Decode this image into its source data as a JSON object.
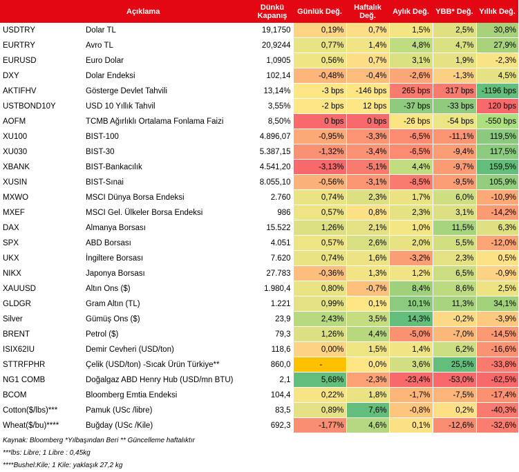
{
  "headers": [
    "",
    "Açıklama",
    "Dünkü Kapanış",
    "Günlük Değ.",
    "Haftalık Değ.",
    "Aylık Değ.",
    "YBB* Değ.",
    "Yıllık Değ."
  ],
  "rows": [
    {
      "code": "USDTRY",
      "desc": "Dolar TL",
      "close": "19,1750",
      "vals": [
        "0,19%",
        "0,7%",
        "1,5%",
        "2,5%",
        "30,8%"
      ],
      "colors": [
        "#fcd484",
        "#fdde86",
        "#f3e584",
        "#e0e082",
        "#a7d17a"
      ]
    },
    {
      "code": "EURTRY",
      "desc": "Avro TL",
      "close": "20,9244",
      "vals": [
        "0,77%",
        "1,4%",
        "4,8%",
        "4,7%",
        "27,9%"
      ],
      "colors": [
        "#e8e383",
        "#f1e485",
        "#bedc80",
        "#d9e182",
        "#a9d27c"
      ]
    },
    {
      "code": "EURUSD",
      "desc": "Euro Dolar",
      "close": "1,0905",
      "vals": [
        "0,56%",
        "0,7%",
        "3,1%",
        "1,9%",
        "-2,3%"
      ],
      "colors": [
        "#f0e584",
        "#fdde86",
        "#dae181",
        "#e6e283",
        "#f8e386"
      ]
    },
    {
      "code": "DXY",
      "desc": "Dolar Endeksi",
      "close": "102,14",
      "vals": [
        "-0,48%",
        "-0,4%",
        "-2,6%",
        "-1,3%",
        "4,5%"
      ],
      "colors": [
        "#fcb57a",
        "#fcbd7c",
        "#fba676",
        "#fcd083",
        "#e5e283"
      ]
    },
    {
      "code": "AKTIFHV",
      "desc": "Gösterge Devlet Tahvili",
      "close": "13,14%",
      "vals": [
        "-3 bps",
        "-146 bps",
        "265 bps",
        "317 bps",
        "-1196 bps"
      ],
      "colors": [
        "#fee684",
        "#fee684",
        "#f97a6e",
        "#f97a6e",
        "#63be7b"
      ]
    },
    {
      "code": "USTBOND10Y",
      "desc": "USD 10 Yıllık Tahvil",
      "close": "3,55%",
      "vals": [
        "-2 bps",
        "12 bps",
        "-37 bps",
        "-33 bps",
        "120 bps"
      ],
      "colors": [
        "#fee684",
        "#fee684",
        "#8fca7e",
        "#8fca7e",
        "#f8696b"
      ]
    },
    {
      "code": "AOFM",
      "desc": "TCMB Ağırlıklı Ortalama Fonlama Faizi",
      "close": "8,50%",
      "vals": [
        "0 bps",
        "0 bps",
        "-26 bps",
        "-54 bps",
        "-550 bps"
      ],
      "colors": [
        "#f8696b",
        "#f8696b",
        "#f9e584",
        "#ece584",
        "#ace07e"
      ]
    },
    {
      "code": "XU100",
      "desc": "BIST-100",
      "close": "4.896,07",
      "vals": [
        "-0,95%",
        "-3,3%",
        "-6,5%",
        "-11,1%",
        "119,5%"
      ],
      "colors": [
        "#fba977",
        "#fb9473",
        "#fb8c71",
        "#fa9473",
        "#8bca7e"
      ]
    },
    {
      "code": "XU030",
      "desc": "BIST-30",
      "close": "5.387,15",
      "vals": [
        "-1,32%",
        "-3,4%",
        "-6,5%",
        "-9,4%",
        "117,5%"
      ],
      "colors": [
        "#fa9172",
        "#fb9273",
        "#fb8c71",
        "#fa9c74",
        "#8cca7e"
      ]
    },
    {
      "code": "XBANK",
      "desc": "BIST-Bankacılık",
      "close": "4.541,20",
      "vals": [
        "-3,13%",
        "-5,1%",
        "4,4%",
        "-9,7%",
        "159,5%"
      ],
      "colors": [
        "#f8696b",
        "#f97b6e",
        "#c2dd80",
        "#fa9b74",
        "#63be7b"
      ]
    },
    {
      "code": "XUSIN",
      "desc": "BIST-Sınai",
      "close": "8.055,10",
      "vals": [
        "-0,56%",
        "-3,1%",
        "-8,5%",
        "-9,5%",
        "105,9%"
      ],
      "colors": [
        "#fbb27a",
        "#fb9773",
        "#f97a6e",
        "#fa9c74",
        "#95cd7e"
      ]
    },
    {
      "code": "MXWO",
      "desc": "MSCI Dünya Borsa Endeksi",
      "close": "2.760",
      "vals": [
        "0,74%",
        "2,3%",
        "1,7%",
        "6,0%",
        "-10,9%"
      ],
      "colors": [
        "#eae384",
        "#dde082",
        "#ebe383",
        "#cedf81",
        "#fba976"
      ]
    },
    {
      "code": "MXEF",
      "desc": "MSCI Gel. Ülkeler Borsa Endeksi",
      "close": "986",
      "vals": [
        "0,57%",
        "0,8%",
        "2,3%",
        "3,1%",
        "-14,2%"
      ],
      "colors": [
        "#efe484",
        "#fbe086",
        "#e4e283",
        "#dde082",
        "#fa9b74"
      ]
    },
    {
      "code": "DAX",
      "desc": "Almanya Borsası",
      "close": "15.522",
      "vals": [
        "1,26%",
        "2,1%",
        "1,0%",
        "11,5%",
        "6,3%"
      ],
      "colors": [
        "#dde082",
        "#e3e183",
        "#f4e585",
        "#a7d47f",
        "#dee082"
      ]
    },
    {
      "code": "SPX",
      "desc": "ABD Borsası",
      "close": "4.051",
      "vals": [
        "0,57%",
        "2,6%",
        "2,0%",
        "5,5%",
        "-12,0%"
      ],
      "colors": [
        "#efe484",
        "#d7df82",
        "#e8e283",
        "#d1df81",
        "#fba475"
      ]
    },
    {
      "code": "UKX",
      "desc": "İngiltere Borsası",
      "close": "7.620",
      "vals": [
        "0,74%",
        "1,6%",
        "-3,2%",
        "2,3%",
        "0,5%"
      ],
      "colors": [
        "#eae384",
        "#ede384",
        "#fa9e75",
        "#e4e183",
        "#fce285"
      ]
    },
    {
      "code": "NIKX",
      "desc": "Japonya Borsası",
      "close": "27.783",
      "vals": [
        "-0,36%",
        "1,3%",
        "1,2%",
        "6,5%",
        "-0,9%"
      ],
      "colors": [
        "#fcbd7d",
        "#f2e485",
        "#f1e484",
        "#cadd81",
        "#fcd384"
      ]
    },
    {
      "code": "XAUUSD",
      "desc": "Altın Ons ($)",
      "close": "1.980,4",
      "vals": [
        "0,80%",
        "-0,7%",
        "8,4%",
        "8,6%",
        "2,5%"
      ],
      "colors": [
        "#e9e383",
        "#fdc17d",
        "#9fd17d",
        "#bcda80",
        "#eee383"
      ]
    },
    {
      "code": "GLDGR",
      "desc": "Gram Altın (TL)",
      "close": "1.221",
      "vals": [
        "0,99%",
        "0,1%",
        "10,1%",
        "11,3%",
        "34,1%"
      ],
      "colors": [
        "#e4e283",
        "#fee684",
        "#8ccb7e",
        "#a9d47f",
        "#a2d17c"
      ]
    },
    {
      "code": "Silver",
      "desc": "Gümüş Ons ($)",
      "close": "23,9",
      "vals": [
        "2,43%",
        "3,5%",
        "14,3%",
        "-0,2%",
        "-3,9%"
      ],
      "colors": [
        "#b9d980",
        "#c6dc80",
        "#63be7b",
        "#fcda85",
        "#fcc97f"
      ]
    },
    {
      "code": "BRENT",
      "desc": "Petrol ($)",
      "close": "79,3",
      "vals": [
        "1,26%",
        "4,4%",
        "-5,0%",
        "-7,0%",
        "-14,5%"
      ],
      "colors": [
        "#dde082",
        "#b8d880",
        "#fa9272",
        "#fbb87b",
        "#fa9a74"
      ]
    },
    {
      "code": "ISIX62IU",
      "desc": "Demir Cevheri (USD/ton)",
      "close": "118,6",
      "vals": [
        "0,00%",
        "1,5%",
        "1,4%",
        "6,2%",
        "-16,6%"
      ],
      "colors": [
        "#fcd384",
        "#efe484",
        "#f0e484",
        "#cbde81",
        "#fa9373"
      ]
    },
    {
      "code": "STTRFPHR",
      "desc": "Çelik (USD/ton) -Sıcak Ürün Türkiye**",
      "close": "860,0",
      "vals": [
        "-",
        "0,0%",
        "3,6%",
        "25,5%",
        "-33,8%"
      ],
      "colors": [
        "#ffc000",
        "#fee684",
        "#d1df82",
        "#63be7b",
        "#f97b6f"
      ]
    },
    {
      "code": "NG1 COMB",
      "desc": "Doğalgaz ABD Henry Hub (USD/mn BTU)",
      "close": "2,1",
      "vals": [
        "5,68%",
        "-2,3%",
        "-23,4%",
        "-53,0%",
        "-62,5%"
      ],
      "colors": [
        "#63be7b",
        "#fca274",
        "#f8696b",
        "#f8696b",
        "#f8696b"
      ]
    },
    {
      "code": "BCOM",
      "desc": "Bloomberg Emtia Endeksi",
      "close": "104,4",
      "vals": [
        "0,22%",
        "1,8%",
        "-1,7%",
        "-7,5%",
        "-17,4%"
      ],
      "colors": [
        "#f7e585",
        "#ebe383",
        "#fcb67a",
        "#fbb47a",
        "#fa9172"
      ]
    },
    {
      "code": "Cotton($/lbs)***",
      "desc": "Pamuk (USc /libre)",
      "close": "83,5",
      "vals": [
        "0,89%",
        "7,6%",
        "-0,8%",
        "0,2%",
        "-40,3%"
      ],
      "colors": [
        "#e6e283",
        "#63be7b",
        "#fcc57e",
        "#fde085",
        "#f97a6e"
      ]
    },
    {
      "code": "Wheat($/bu)****",
      "desc": "Buğday (USc /Kile)",
      "close": "692,3",
      "vals": [
        "-1,77%",
        "4,6%",
        "0,1%",
        "-12,6%",
        "-32,6%"
      ],
      "colors": [
        "#fa8e72",
        "#b4d780",
        "#fbe086",
        "#fa8c71",
        "#f97e6f"
      ]
    }
  ],
  "footnotes": [
    "Kaynak: Bloomberg *Yılbaşından Beri  ** Güncelleme haftalıktır",
    "***lbs: Libre; 1 Libre : 0,45kg",
    "****Bushel:Kile; 1 Kile: yaklaşık 27,2 kg"
  ]
}
